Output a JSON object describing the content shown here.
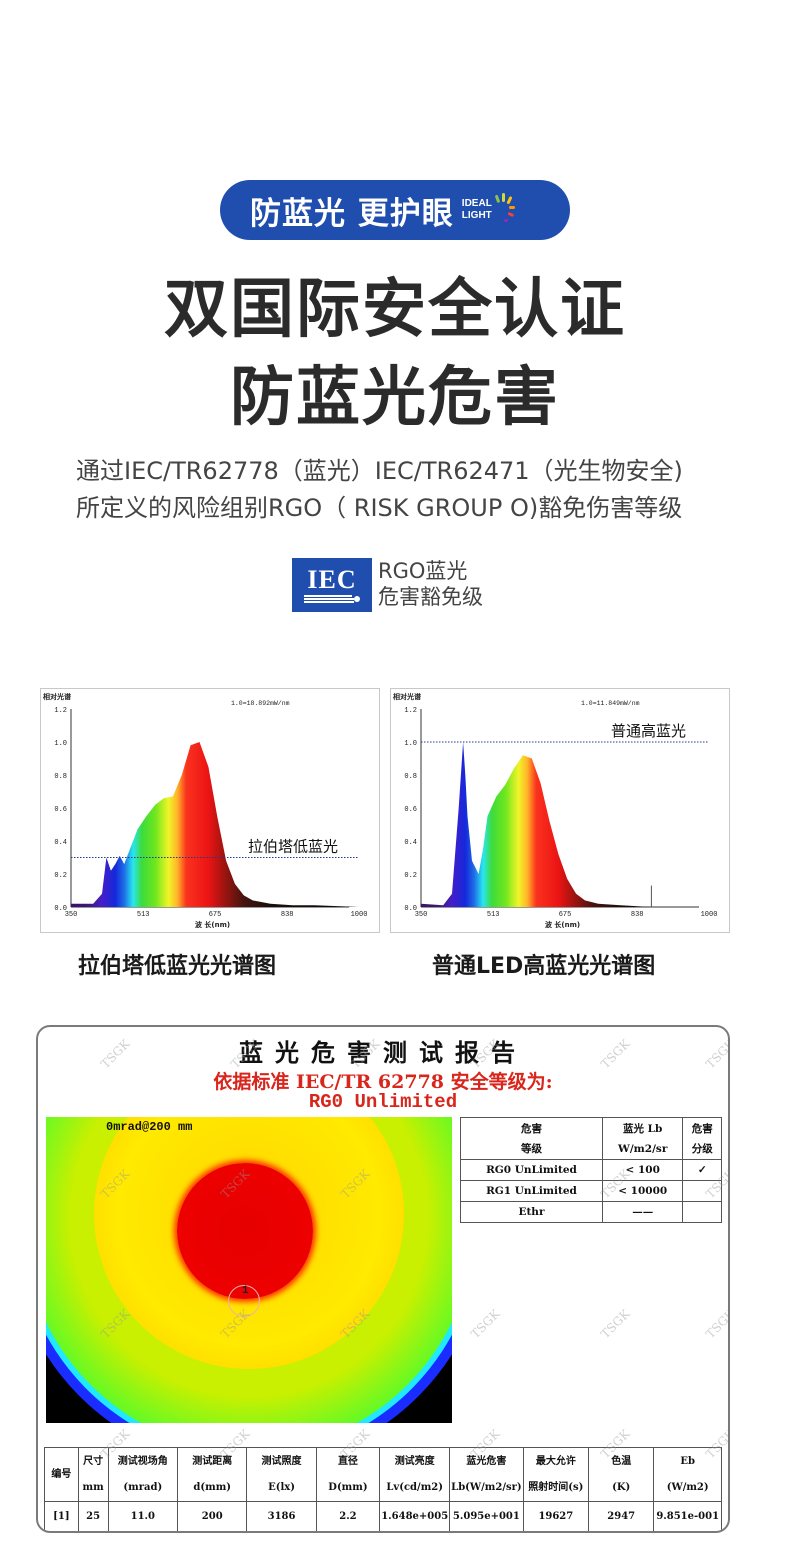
{
  "badge": {
    "text": "防蓝光 更护眼",
    "logo_line1": "IDEAL",
    "logo_line2": "LIGHT",
    "color": "#1f4eae"
  },
  "headline": {
    "line1": "双国际安全认证",
    "line2": "防蓝光危害"
  },
  "description": {
    "line1": "通过IEC/TR62778（蓝光）IEC/TR62471（光生物安全)",
    "line2": "所定义的风险组别RGO（ RISK GROUP O)豁免伤害等级"
  },
  "certification": {
    "logo_text": "IEC",
    "label_line1": "RGO蓝光",
    "label_line2": "危害豁免级"
  },
  "chart_data": [
    {
      "type": "area",
      "title": "拉伯塔低蓝光光谱图",
      "ylabel": "相对光谱",
      "xlabel": "波 长(nm)",
      "scale_note": "1.0=18.892mW/nm",
      "annotation": "拉伯塔低蓝光",
      "reference_line_y": 0.3,
      "xlim": [
        350,
        1000
      ],
      "ylim": [
        0,
        1.2
      ],
      "x_ticks": [
        350,
        513,
        675,
        838,
        1000
      ],
      "y_ticks": [
        "0.0",
        "0.2",
        "0.4",
        "0.6",
        "0.8",
        "1.0",
        "1.2"
      ],
      "x": [
        350,
        400,
        420,
        430,
        440,
        450,
        460,
        470,
        480,
        500,
        520,
        540,
        560,
        580,
        600,
        620,
        640,
        660,
        680,
        700,
        720,
        740,
        760,
        800,
        850,
        900,
        1000
      ],
      "values": [
        0.02,
        0.02,
        0.08,
        0.3,
        0.22,
        0.26,
        0.31,
        0.26,
        0.33,
        0.47,
        0.55,
        0.62,
        0.66,
        0.67,
        0.8,
        0.98,
        1.0,
        0.85,
        0.55,
        0.28,
        0.14,
        0.07,
        0.04,
        0.02,
        0.01,
        0.01,
        0.0
      ]
    },
    {
      "type": "area",
      "title": "普通LED高蓝光光谱图",
      "ylabel": "相对光谱",
      "xlabel": "波 长(nm)",
      "scale_note": "1.0=11.849mW/nm",
      "annotation": "普通高蓝光",
      "reference_line_y": 1.0,
      "xlim": [
        350,
        1000
      ],
      "ylim": [
        0,
        1.2
      ],
      "x_ticks": [
        350,
        513,
        675,
        838,
        1000
      ],
      "y_ticks": [
        "0.0",
        "0.2",
        "0.4",
        "0.6",
        "0.8",
        "1.0",
        "1.2"
      ],
      "x": [
        350,
        400,
        420,
        435,
        445,
        450,
        455,
        465,
        480,
        490,
        500,
        520,
        540,
        560,
        580,
        600,
        620,
        640,
        660,
        680,
        700,
        720,
        750,
        800,
        870,
        1000
      ],
      "values": [
        0.02,
        0.01,
        0.08,
        0.6,
        1.0,
        0.8,
        0.55,
        0.28,
        0.2,
        0.35,
        0.55,
        0.67,
        0.74,
        0.84,
        0.92,
        0.9,
        0.75,
        0.52,
        0.32,
        0.17,
        0.08,
        0.04,
        0.02,
        0.01,
        0.0,
        0.0
      ]
    }
  ],
  "captions": {
    "left": "拉伯塔低蓝光光谱图",
    "right": "普通LED高蓝光光谱图"
  },
  "report": {
    "title": "蓝光危害测试报告",
    "standard": "依据标准 IEC/TR 62778 安全等级为:",
    "level": "RG0 Unlimited",
    "heatmap_label": "0mrad@200 mm",
    "marker": "1",
    "watermark": "TSGK",
    "hazard_table": {
      "headers": [
        [
          "危害",
          "等级"
        ],
        [
          "蓝光 Lb",
          "W/m2/sr"
        ],
        [
          "危害",
          "分级"
        ]
      ],
      "rows": [
        [
          "RG0 UnLimited",
          "< 100",
          "✓"
        ],
        [
          "RG1 UnLimited",
          "< 10000",
          ""
        ],
        [
          "Ethr",
          "——",
          ""
        ]
      ]
    },
    "data_table": {
      "headers": [
        [
          "编号",
          ""
        ],
        [
          "尺寸",
          "mm"
        ],
        [
          "测试视场角",
          "(mrad)"
        ],
        [
          "测试距离",
          "d(mm)"
        ],
        [
          "测试照度",
          "E(lx)"
        ],
        [
          "直径",
          "D(mm)"
        ],
        [
          "测试亮度",
          "Lv(cd/m2)"
        ],
        [
          "蓝光危害",
          "Lb(W/m2/sr)"
        ],
        [
          "最大允许",
          "照射时间(s)"
        ],
        [
          "色温",
          "(K)"
        ],
        [
          "Eb",
          "(W/m2)"
        ]
      ],
      "rows": [
        [
          "[1]",
          "25",
          "11.0",
          "200",
          "3186",
          "2.2",
          "1.648e+005",
          "5.095e+001",
          "19627",
          "2947",
          "9.851e-001"
        ]
      ]
    }
  }
}
